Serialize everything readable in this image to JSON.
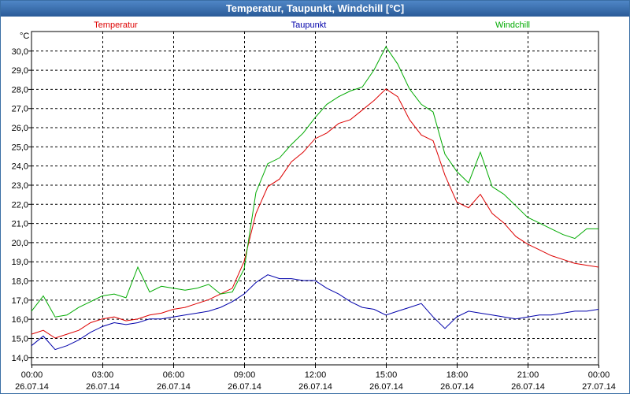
{
  "window": {
    "title": "Temperatur, Taupunkt, Windchill [°C]"
  },
  "colors": {
    "temperatur": "#dd0000",
    "taupunkt": "#0000aa",
    "windchill": "#00aa00",
    "grid": "#000000",
    "background": "#ffffff"
  },
  "chart_data": {
    "type": "line",
    "title": "Temperatur, Taupunkt, Windchill [°C]",
    "ylabel": "°C",
    "ylim": [
      13.6,
      31.0
    ],
    "xlim": [
      0,
      24
    ],
    "grid": true,
    "legend_position": "top",
    "y_ticks": [
      "14,0",
      "15,0",
      "16,0",
      "17,0",
      "18,0",
      "19,0",
      "20,0",
      "21,0",
      "22,0",
      "23,0",
      "24,0",
      "25,0",
      "26,0",
      "27,0",
      "28,0",
      "29,0",
      "30,0"
    ],
    "x_ticks": [
      {
        "time": "00:00",
        "date": "26.07.14"
      },
      {
        "time": "03:00",
        "date": "26.07.14"
      },
      {
        "time": "06:00",
        "date": "26.07.14"
      },
      {
        "time": "09:00",
        "date": "26.07.14"
      },
      {
        "time": "12:00",
        "date": "26.07.14"
      },
      {
        "time": "15:00",
        "date": "26.07.14"
      },
      {
        "time": "18:00",
        "date": "26.07.14"
      },
      {
        "time": "21:00",
        "date": "26.07.14"
      },
      {
        "time": "00:00",
        "date": "27.07.14"
      }
    ],
    "x": [
      0,
      0.5,
      1,
      1.5,
      2,
      2.5,
      3,
      3.5,
      4,
      4.5,
      5,
      5.5,
      6,
      6.5,
      7,
      7.5,
      8,
      8.5,
      9,
      9.5,
      10,
      10.5,
      11,
      11.5,
      12,
      12.5,
      13,
      13.5,
      14,
      14.5,
      15,
      15.5,
      16,
      16.5,
      17,
      17.5,
      18,
      18.5,
      19,
      19.5,
      20,
      20.5,
      21,
      21.5,
      22,
      22.5,
      23,
      23.5,
      24
    ],
    "series": [
      {
        "name": "Temperatur",
        "color": "#dd0000",
        "values": [
          15.2,
          15.4,
          15.0,
          15.2,
          15.4,
          15.8,
          16.0,
          16.1,
          15.9,
          16.0,
          16.2,
          16.3,
          16.5,
          16.6,
          16.8,
          17.0,
          17.3,
          17.6,
          19.0,
          21.5,
          22.9,
          23.3,
          24.2,
          24.7,
          25.4,
          25.7,
          26.2,
          26.4,
          26.9,
          27.4,
          28.0,
          27.6,
          26.4,
          25.6,
          25.3,
          23.5,
          22.1,
          21.8,
          22.5,
          21.5,
          21.0,
          20.3,
          19.9,
          19.6,
          19.3,
          19.1,
          18.9,
          18.8,
          18.7
        ]
      },
      {
        "name": "Taupunkt",
        "color": "#0000aa",
        "values": [
          14.6,
          15.1,
          14.4,
          14.6,
          14.9,
          15.3,
          15.6,
          15.8,
          15.7,
          15.8,
          16.0,
          16.0,
          16.1,
          16.2,
          16.3,
          16.4,
          16.6,
          16.9,
          17.3,
          17.9,
          18.3,
          18.1,
          18.1,
          18.0,
          18.0,
          17.6,
          17.3,
          16.9,
          16.6,
          16.5,
          16.2,
          16.4,
          16.6,
          16.8,
          16.1,
          15.5,
          16.1,
          16.4,
          16.3,
          16.2,
          16.1,
          16.0,
          16.1,
          16.2,
          16.2,
          16.3,
          16.4,
          16.4,
          16.5
        ]
      },
      {
        "name": "Windchill",
        "color": "#00aa00",
        "values": [
          16.4,
          17.2,
          16.1,
          16.2,
          16.6,
          16.9,
          17.2,
          17.3,
          17.1,
          18.7,
          17.4,
          17.7,
          17.6,
          17.5,
          17.6,
          17.8,
          17.3,
          17.4,
          18.6,
          22.6,
          24.1,
          24.4,
          25.1,
          25.7,
          26.5,
          27.2,
          27.6,
          27.9,
          28.1,
          29.0,
          30.2,
          29.3,
          28.0,
          27.2,
          26.8,
          24.6,
          23.7,
          23.1,
          24.7,
          22.9,
          22.5,
          21.9,
          21.3,
          21.0,
          20.7,
          20.4,
          20.2,
          20.7,
          20.7
        ]
      }
    ]
  }
}
